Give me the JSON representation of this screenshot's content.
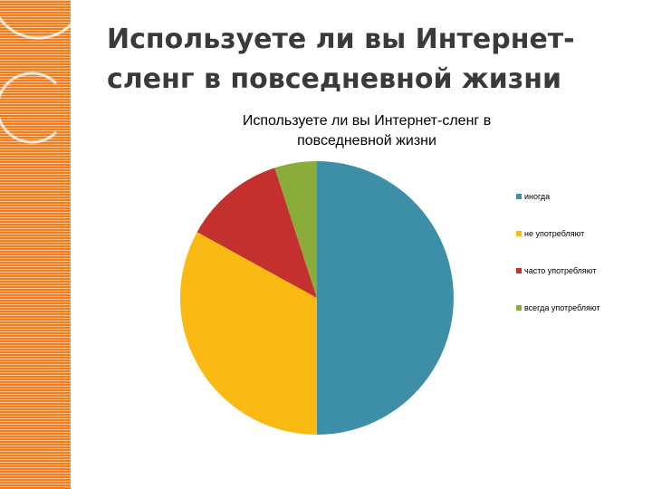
{
  "slide": {
    "title": "Используете ли вы Интернет-сленг в повседневной жизни",
    "band_color": "#f07e1d"
  },
  "chart_data": {
    "type": "pie",
    "title": "Используете ли вы Интернет-сленг в повседневной жизни",
    "categories": [
      "иногда",
      "не употребляют",
      "часто употребляют",
      "всегда употребляют"
    ],
    "values": [
      50,
      33,
      12,
      5
    ],
    "colors": [
      "#3d8fa8",
      "#fbb913",
      "#c3302e",
      "#8aac38"
    ],
    "start_angle": "12 o'clock",
    "direction": "clockwise",
    "legend": "right"
  }
}
